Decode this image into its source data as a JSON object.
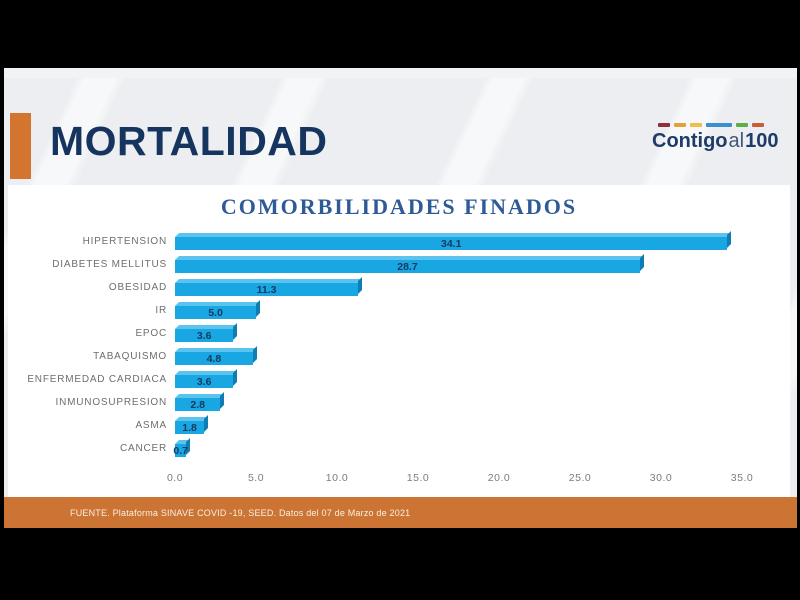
{
  "slide": {
    "title": "MORTALIDAD",
    "accent_color": "#d3742f",
    "background": "#eceef1"
  },
  "logo": {
    "contigo": "Contigo",
    "al": "al",
    "hundred": "100",
    "text_color": "#1d3c68",
    "dashes": [
      {
        "color": "#8e3040",
        "flex": "1"
      },
      {
        "color": "#e2a23b",
        "flex": "1"
      },
      {
        "color": "#ecc04a",
        "flex": "1"
      },
      {
        "color": "#3a8fcc",
        "flex": "2.2"
      },
      {
        "color": "#5fae49",
        "flex": "1"
      },
      {
        "color": "#cf5a38",
        "flex": "1"
      }
    ]
  },
  "chart_data": {
    "type": "bar",
    "orientation": "horizontal",
    "title": "COMORBILIDADES FINADOS",
    "categories": [
      "HIPERTENSION",
      "DIABETES MELLITUS",
      "OBESIDAD",
      "IR",
      "EPOC",
      "TABAQUISMO",
      "ENFERMEDAD CARDIACA",
      "INMUNOSUPRESION",
      "ASMA",
      "CANCER"
    ],
    "values": [
      34.1,
      28.7,
      11.3,
      5.0,
      3.6,
      4.8,
      3.6,
      2.8,
      1.8,
      0.7
    ],
    "value_labels": [
      "34.1",
      "28.7",
      "11.3",
      "5.0",
      "3.6",
      "4.8",
      "3.6",
      "2.8",
      "1.8",
      "0.7"
    ],
    "xlim": [
      0,
      35
    ],
    "x_ticks": [
      "0.0",
      "5.0",
      "10.0",
      "15.0",
      "20.0",
      "25.0",
      "30.0",
      "35.0"
    ],
    "grid": false,
    "legend": false,
    "bar_color": "#18a7e3",
    "bar_top_color": "#5ac4ee",
    "bar_side_color": "#0f7cb4",
    "value_label_color": "#17375d",
    "title_color": "#2e5b97"
  },
  "footer": {
    "source_text": "FUENTE. Plataforma SINAVE COVID -19, SEED. Datos del 07 de Marzo de 2021",
    "background": "#cc7434"
  }
}
